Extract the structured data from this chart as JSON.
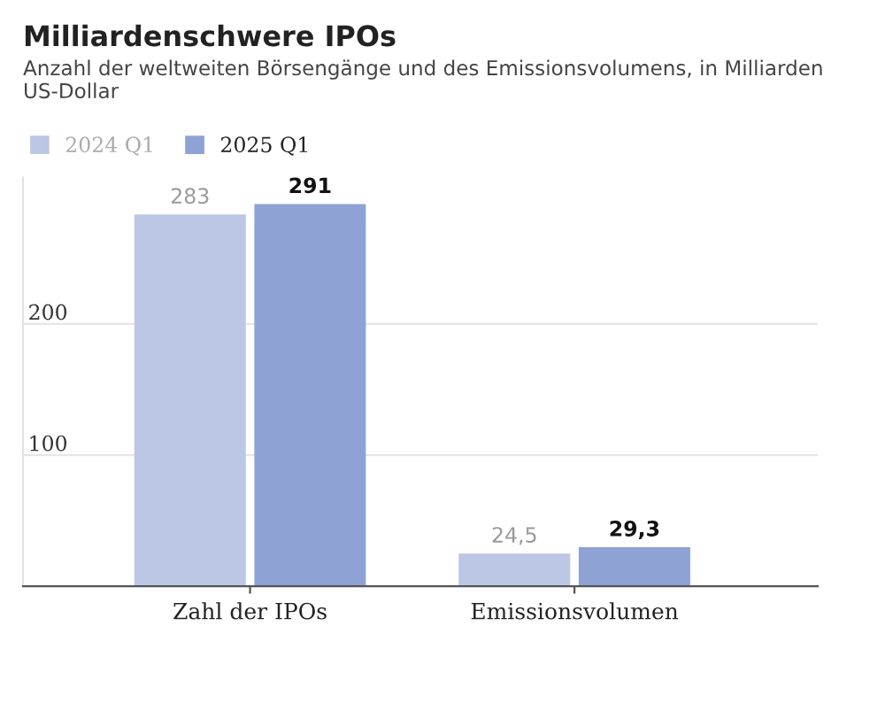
{
  "chart_data": {
    "type": "bar",
    "title": "Milliardenschwere IPOs",
    "subtitle": "Anzahl der weltweiten Börsengänge und des Emissionsvolumens, in Milliarden US-Dollar",
    "categories": [
      "Zahl der IPOs",
      "Emissionsvolumen"
    ],
    "series": [
      {
        "name": "2024 Q1",
        "color": "#bcc6e5",
        "values": [
          283,
          24.5
        ],
        "value_labels": [
          "283",
          "24,5"
        ]
      },
      {
        "name": "2025 Q1",
        "color": "#8ea2d3",
        "values": [
          291,
          29.3
        ],
        "value_labels": [
          "291",
          "29,3"
        ]
      }
    ],
    "ylim": [
      0,
      312
    ],
    "yticks": [
      {
        "value": 0,
        "label": null
      },
      100,
      200
    ],
    "grid": "y",
    "legend": "top left"
  }
}
